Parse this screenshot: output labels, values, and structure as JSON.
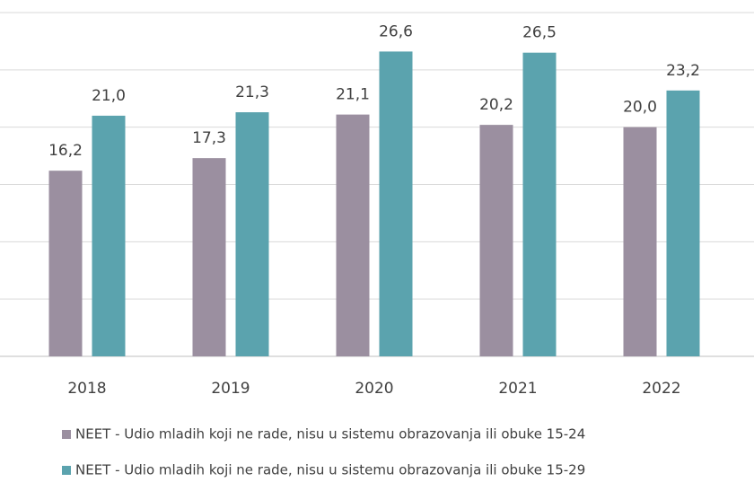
{
  "chart_data": {
    "type": "bar",
    "categories": [
      "2018",
      "2019",
      "2020",
      "2021",
      "2022"
    ],
    "series": [
      {
        "name": "NEET - Udio mladih koji ne rade, nisu u sistemu obrazovanja ili obuke  15-24",
        "color": "#9b8fa0",
        "values": [
          16.2,
          17.3,
          21.1,
          20.2,
          20.0
        ],
        "value_labels": [
          "16,2",
          "17,3",
          "21,1",
          "20,2",
          "20,0"
        ]
      },
      {
        "name": "NEET - Udio mladih koji ne rade, nisu u sistemu obrazovanja ili obuke  15-29",
        "color": "#5ba3ae",
        "values": [
          21.0,
          21.3,
          26.6,
          26.5,
          23.2
        ],
        "value_labels": [
          "21,0",
          "21,3",
          "26,6",
          "26,5",
          "23,2"
        ]
      }
    ],
    "ylim": [
      0,
      30
    ],
    "yticks": [
      0,
      5,
      10,
      15,
      20,
      25,
      30
    ],
    "grid": true
  }
}
